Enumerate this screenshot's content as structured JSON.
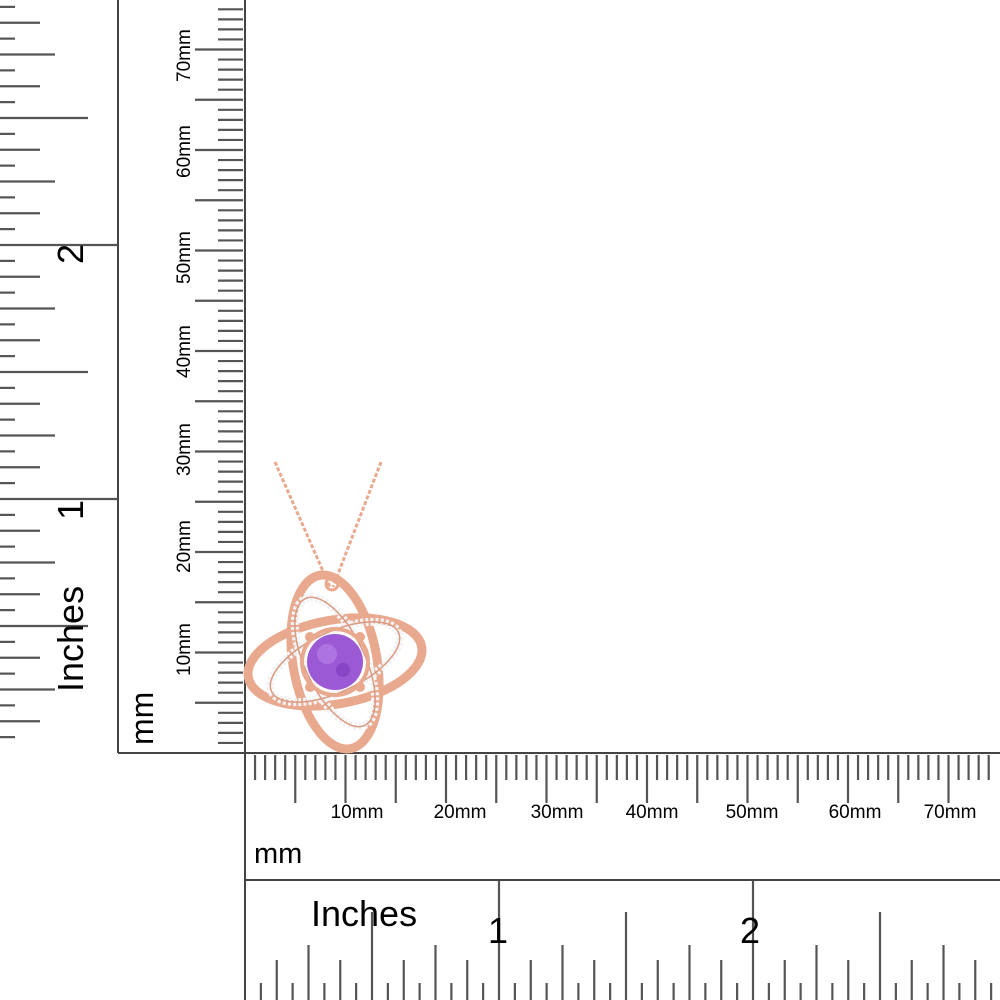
{
  "rulers": {
    "unit_mm": "mm",
    "unit_inches": "Inches",
    "mm_labels": [
      "10mm",
      "20mm",
      "30mm",
      "40mm",
      "50mm",
      "60mm",
      "70mm"
    ],
    "inch_labels": [
      "1",
      "2"
    ]
  },
  "product": {
    "type": "pendant necklace",
    "metal_color": "#e8a98f",
    "stone_color": "#9b59d6",
    "accent_stone_color": "#f2f2f4"
  }
}
